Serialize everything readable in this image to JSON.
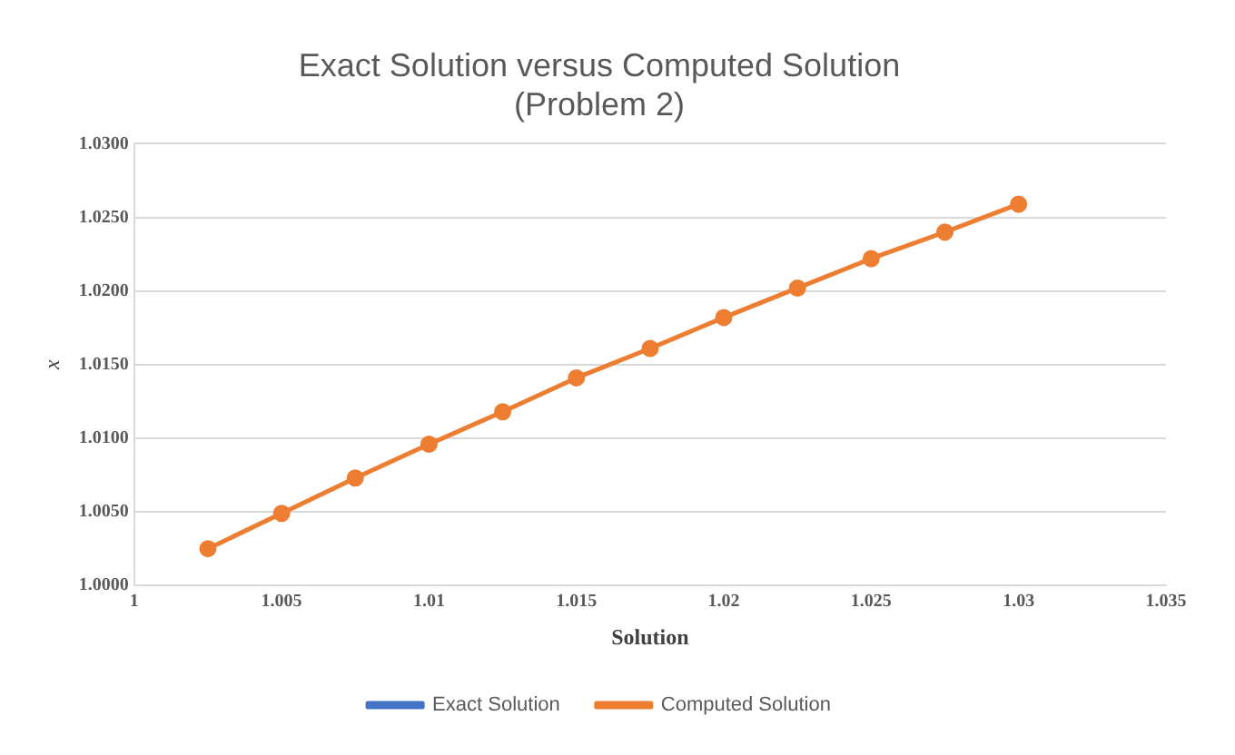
{
  "chart_data": {
    "type": "line",
    "title": [
      "Exact Solution versus Computed Solution",
      "(Problem 2)"
    ],
    "xlabel": "Solution",
    "ylabel": "x",
    "x": [
      1.0025,
      1.005,
      1.0075,
      1.01,
      1.0125,
      1.015,
      1.0175,
      1.02,
      1.0225,
      1.025,
      1.0275,
      1.03
    ],
    "series": [
      {
        "name": "Exact Solution",
        "color": "#4472c4",
        "values": [
          null,
          null,
          null,
          null,
          null,
          null,
          null,
          null,
          null,
          null,
          null,
          null
        ]
      },
      {
        "name": "Computed Solution",
        "color": "#ed7d31",
        "values": [
          1.0025,
          1.0049,
          1.0073,
          1.0096,
          1.0118,
          1.0141,
          1.0161,
          1.0182,
          1.0202,
          1.0222,
          1.024,
          1.0259
        ]
      }
    ],
    "xlim": [
      1,
      1.035
    ],
    "xticks": [
      1,
      1.005,
      1.01,
      1.015,
      1.02,
      1.025,
      1.03,
      1.035
    ],
    "ylim": [
      1,
      1.03
    ],
    "yticks": [
      {
        "value": 1,
        "label": "1.0000"
      },
      {
        "value": 1.005,
        "label": "1.0050"
      },
      {
        "value": 1.01,
        "label": "1.0100"
      },
      {
        "value": 1.015,
        "label": "1.0150"
      },
      {
        "value": 1.02,
        "label": "1.0200"
      },
      {
        "value": 1.025,
        "label": "1.0250"
      },
      {
        "value": 1.03,
        "label": "1.0300"
      }
    ],
    "grid": "y",
    "legend": "bottom",
    "marker": "circle",
    "line_style": "solid"
  }
}
